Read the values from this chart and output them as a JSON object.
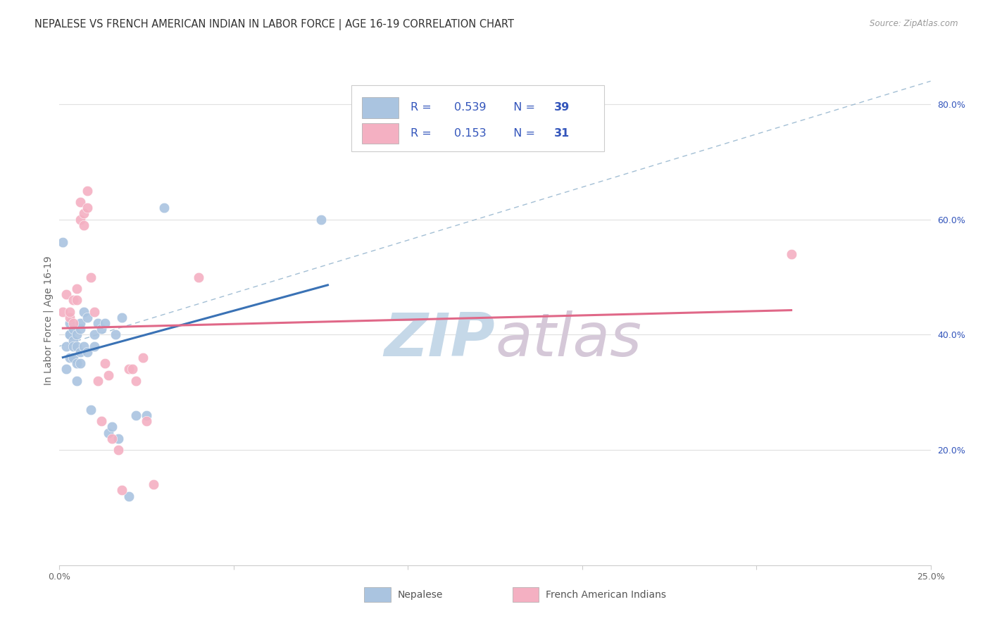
{
  "title": "NEPALESE VS FRENCH AMERICAN INDIAN IN LABOR FORCE | AGE 16-19 CORRELATION CHART",
  "source": "Source: ZipAtlas.com",
  "ylabel": "In Labor Force | Age 16-19",
  "xlim": [
    0.0,
    0.25
  ],
  "ylim": [
    0.0,
    0.85
  ],
  "yticks_right": [
    0.2,
    0.4,
    0.6,
    0.8
  ],
  "nepalese_R": 0.539,
  "nepalese_N": 39,
  "french_R": 0.153,
  "french_N": 31,
  "nepalese_color": "#aac4e0",
  "french_color": "#f4b0c2",
  "nepalese_line_color": "#3a72b5",
  "french_line_color": "#e06888",
  "diagonal_color": "#99b8d0",
  "nepalese_x": [
    0.001,
    0.002,
    0.002,
    0.003,
    0.003,
    0.003,
    0.003,
    0.004,
    0.004,
    0.004,
    0.004,
    0.005,
    0.005,
    0.005,
    0.005,
    0.006,
    0.006,
    0.006,
    0.006,
    0.007,
    0.007,
    0.008,
    0.008,
    0.009,
    0.01,
    0.01,
    0.011,
    0.012,
    0.013,
    0.014,
    0.015,
    0.016,
    0.017,
    0.018,
    0.02,
    0.022,
    0.025,
    0.03,
    0.075
  ],
  "nepalese_y": [
    0.56,
    0.34,
    0.38,
    0.36,
    0.4,
    0.42,
    0.4,
    0.39,
    0.36,
    0.38,
    0.41,
    0.4,
    0.38,
    0.35,
    0.32,
    0.41,
    0.42,
    0.37,
    0.35,
    0.44,
    0.38,
    0.43,
    0.37,
    0.27,
    0.4,
    0.38,
    0.42,
    0.41,
    0.42,
    0.23,
    0.24,
    0.4,
    0.22,
    0.43,
    0.12,
    0.26,
    0.26,
    0.62,
    0.6
  ],
  "french_x": [
    0.001,
    0.002,
    0.003,
    0.003,
    0.004,
    0.004,
    0.005,
    0.005,
    0.006,
    0.006,
    0.007,
    0.007,
    0.008,
    0.008,
    0.009,
    0.01,
    0.011,
    0.012,
    0.013,
    0.014,
    0.015,
    0.017,
    0.018,
    0.02,
    0.021,
    0.022,
    0.024,
    0.025,
    0.027,
    0.04,
    0.21
  ],
  "french_y": [
    0.44,
    0.47,
    0.43,
    0.44,
    0.42,
    0.46,
    0.48,
    0.46,
    0.63,
    0.6,
    0.59,
    0.61,
    0.62,
    0.65,
    0.5,
    0.44,
    0.32,
    0.25,
    0.35,
    0.33,
    0.22,
    0.2,
    0.13,
    0.34,
    0.34,
    0.32,
    0.36,
    0.25,
    0.14,
    0.5,
    0.54
  ],
  "background_color": "#ffffff",
  "grid_color": "#e0e0e0",
  "title_fontsize": 10.5,
  "axis_label_fontsize": 10,
  "tick_fontsize": 9,
  "legend_text_color": "#3355bb",
  "watermark_zip_color": "#c5d8e8",
  "watermark_atlas_color": "#d5c8d8"
}
